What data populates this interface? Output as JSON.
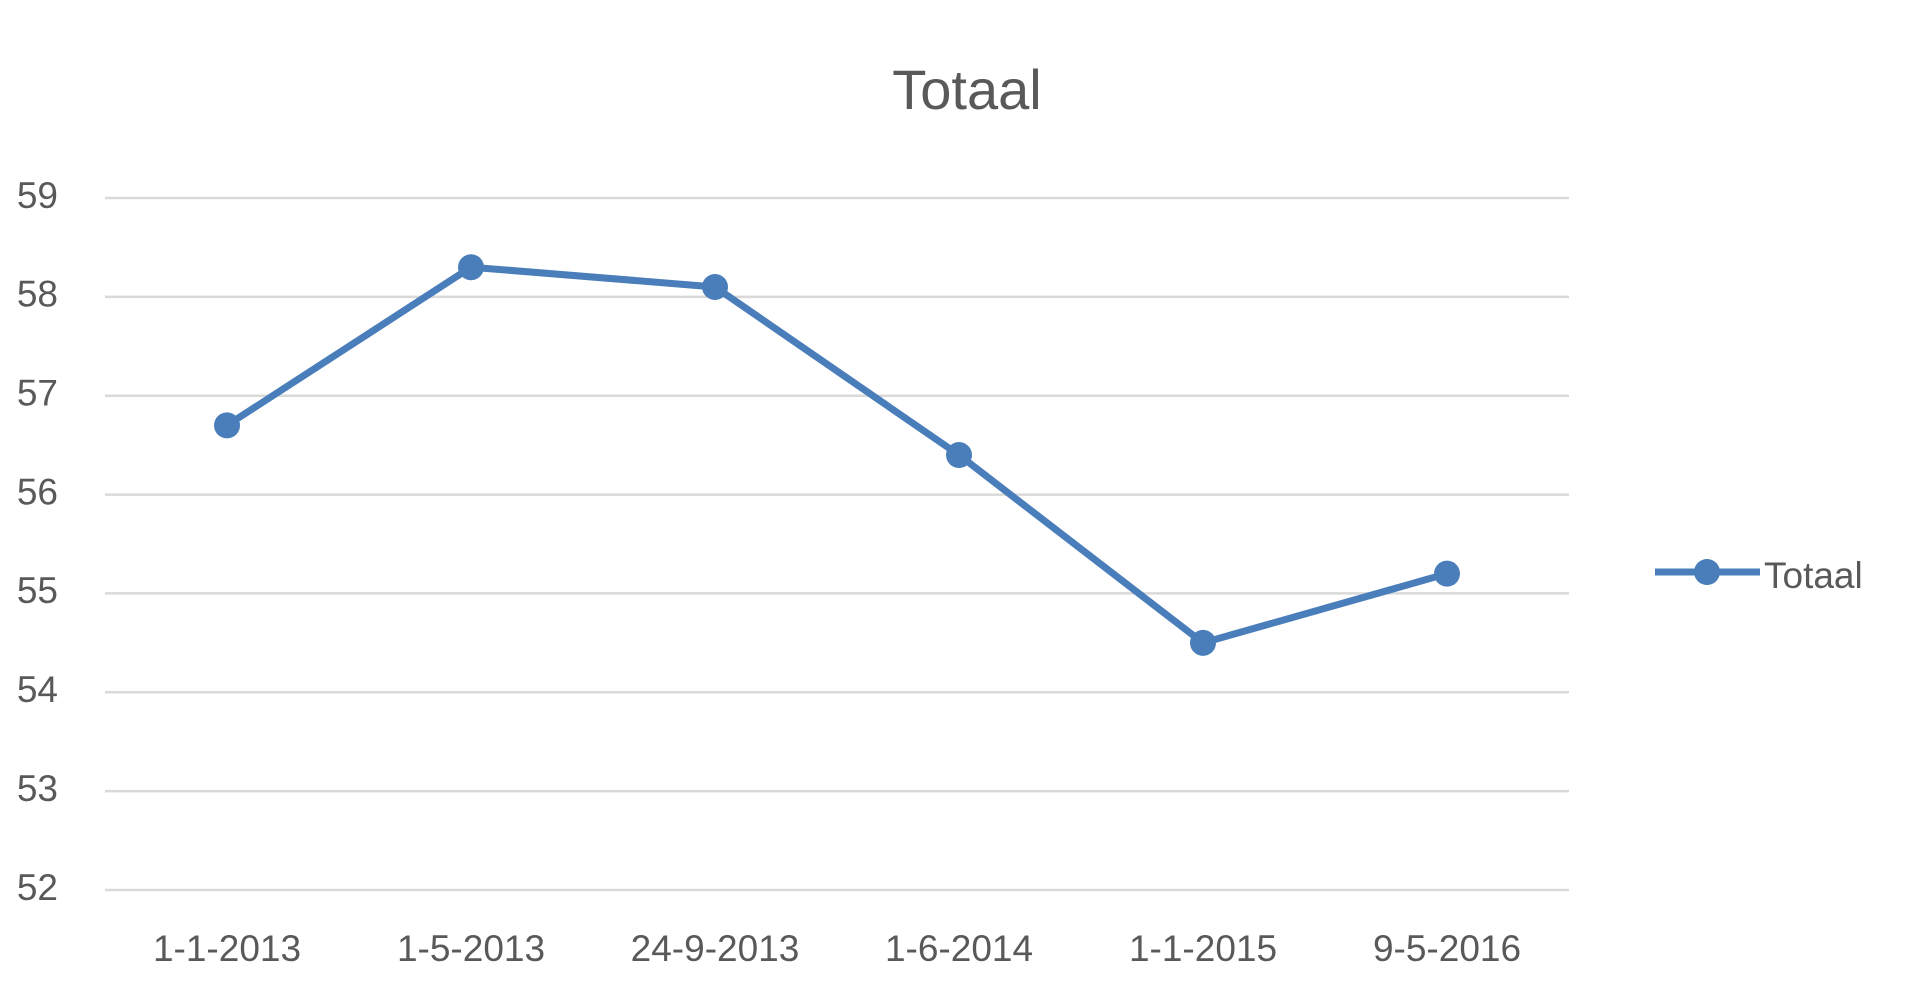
{
  "chart_data": {
    "type": "line",
    "title": "Totaal",
    "categories": [
      "1-1-2013",
      "1-5-2013",
      "24-9-2013",
      "1-6-2014",
      "1-1-2015",
      "9-5-2016"
    ],
    "series": [
      {
        "name": "Totaal",
        "color": "#4a7ebb",
        "values": [
          56.7,
          58.3,
          58.1,
          56.4,
          54.5,
          55.2
        ]
      }
    ],
    "ylim": [
      52,
      59
    ],
    "yticks": [
      52,
      53,
      54,
      55,
      56,
      57,
      58,
      59
    ],
    "grid": true,
    "legend": "right"
  }
}
